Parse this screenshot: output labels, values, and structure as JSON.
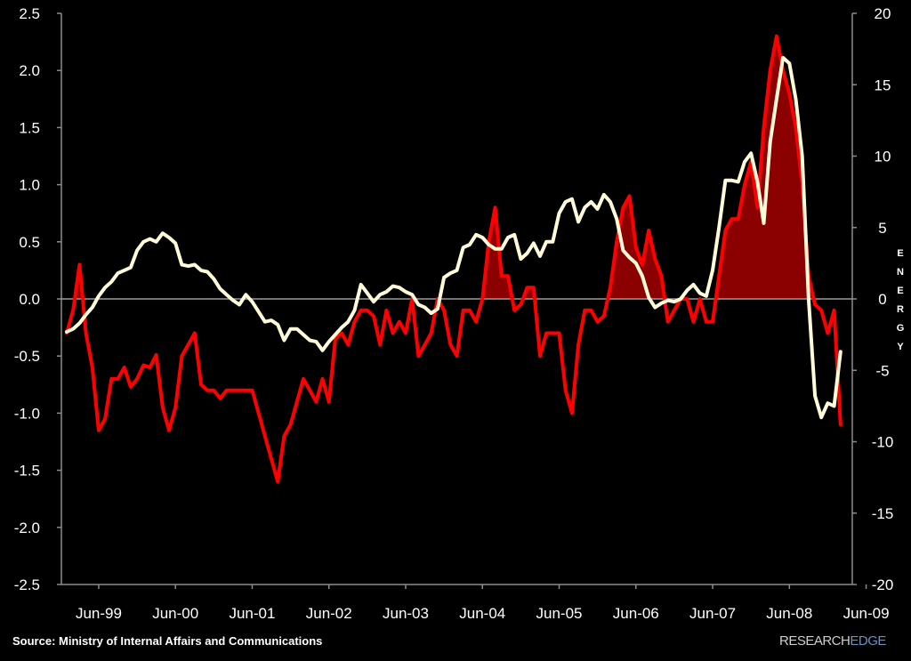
{
  "chart_data": {
    "type": "line",
    "title": "",
    "xlabel": "",
    "ylabel_left": "",
    "ylabel_right": "ENERGY",
    "x_tick_labels": [
      "Jun-99",
      "Jun-00",
      "Jun-01",
      "Jun-02",
      "Jun-03",
      "Jun-04",
      "Jun-05",
      "Jun-06",
      "Jun-07",
      "Jun-08",
      "Jun-09"
    ],
    "x_range": [
      "1999-01",
      "2009-03"
    ],
    "ylim_left": [
      -2.5,
      2.5
    ],
    "ylim_right": [
      -20,
      20
    ],
    "y_ticks_left": [
      "2.5",
      "2.0",
      "1.5",
      "1.0",
      "0.5",
      "0.0",
      "-0.5",
      "-1.0",
      "-1.5",
      "-2.0",
      "-2.5"
    ],
    "y_ticks_right": [
      "20",
      "15",
      "10",
      "5",
      "0",
      "-5",
      "-10",
      "-15",
      "-20"
    ],
    "zero_line": true,
    "series": [
      {
        "axis": "left",
        "color": "#ff0000",
        "fill_positive": "#8b0000",
        "x": [
          "1999-01",
          "1999-02",
          "1999-03",
          "1999-04",
          "1999-05",
          "1999-06",
          "1999-07",
          "1999-08",
          "1999-09",
          "1999-10",
          "1999-11",
          "1999-12",
          "2000-01",
          "2000-02",
          "2000-03",
          "2000-04",
          "2000-05",
          "2000-06",
          "2000-07",
          "2000-08",
          "2000-09",
          "2000-10",
          "2000-11",
          "2000-12",
          "2001-01",
          "2001-02",
          "2001-03",
          "2001-04",
          "2001-05",
          "2001-06",
          "2001-07",
          "2001-08",
          "2001-09",
          "2001-10",
          "2001-11",
          "2001-12",
          "2002-01",
          "2002-02",
          "2002-03",
          "2002-04",
          "2002-05",
          "2002-06",
          "2002-07",
          "2002-08",
          "2002-09",
          "2002-10",
          "2002-11",
          "2002-12",
          "2003-01",
          "2003-02",
          "2003-03",
          "2003-04",
          "2003-05",
          "2003-06",
          "2003-07",
          "2003-08",
          "2003-09",
          "2003-10",
          "2003-11",
          "2003-12",
          "2004-01",
          "2004-02",
          "2004-03",
          "2004-04",
          "2004-05",
          "2004-06",
          "2004-07",
          "2004-08",
          "2004-09",
          "2004-10",
          "2004-11",
          "2004-12",
          "2005-01",
          "2005-02",
          "2005-03",
          "2005-04",
          "2005-05",
          "2005-06",
          "2005-07",
          "2005-08",
          "2005-09",
          "2005-10",
          "2005-11",
          "2005-12",
          "2006-01",
          "2006-02",
          "2006-03",
          "2006-04",
          "2006-05",
          "2006-06",
          "2006-07",
          "2006-08",
          "2006-09",
          "2006-10",
          "2006-11",
          "2006-12",
          "2007-01",
          "2007-02",
          "2007-03",
          "2007-04",
          "2007-05",
          "2007-06",
          "2007-07",
          "2007-08",
          "2007-09",
          "2007-10",
          "2007-11",
          "2007-12",
          "2008-01",
          "2008-02",
          "2008-03",
          "2008-04",
          "2008-05",
          "2008-06",
          "2008-07",
          "2008-08",
          "2008-09",
          "2008-10",
          "2008-11",
          "2008-12",
          "2009-01",
          "2009-02"
        ],
        "values": [
          -0.3,
          -0.1,
          0.3,
          -0.3,
          -0.6,
          -1.15,
          -1.05,
          -0.7,
          -0.7,
          -0.6,
          -0.77,
          -0.7,
          -0.58,
          -0.6,
          -0.49,
          -0.95,
          -1.15,
          -0.95,
          -0.5,
          -0.4,
          -0.3,
          -0.75,
          -0.8,
          -0.8,
          -0.87,
          -0.8,
          -0.8,
          -0.8,
          -0.8,
          -0.8,
          -1.0,
          -1.2,
          -1.4,
          -1.6,
          -1.2,
          -1.1,
          -0.9,
          -0.7,
          -0.8,
          -0.9,
          -0.7,
          -0.9,
          -0.35,
          -0.3,
          -0.4,
          -0.2,
          -0.1,
          -0.1,
          -0.15,
          -0.4,
          -0.1,
          -0.3,
          -0.2,
          -0.3,
          0.0,
          -0.5,
          -0.4,
          -0.3,
          0.0,
          -0.1,
          -0.4,
          -0.5,
          -0.1,
          -0.1,
          -0.2,
          0.0,
          0.5,
          0.8,
          0.2,
          0.2,
          -0.1,
          -0.05,
          0.1,
          0.1,
          -0.5,
          -0.3,
          -0.3,
          -0.3,
          -0.8,
          -1.0,
          -0.4,
          -0.1,
          -0.1,
          -0.2,
          -0.15,
          0.1,
          0.5,
          0.8,
          0.9,
          0.45,
          0.3,
          0.6,
          0.35,
          0.2,
          -0.2,
          -0.1,
          0.0,
          0.0,
          -0.2,
          0.0,
          -0.2,
          -0.2,
          0.2,
          0.6,
          0.7,
          0.7,
          1.0,
          1.2,
          0.8,
          1.5,
          2.0,
          2.3,
          2.0,
          1.8,
          1.5,
          1.0,
          0.2,
          -0.05,
          -0.1,
          -0.3,
          -0.1,
          -1.1
        ]
      },
      {
        "axis": "right",
        "color": "#fffbd8",
        "x": [
          "1999-01",
          "1999-02",
          "1999-03",
          "1999-04",
          "1999-05",
          "1999-06",
          "1999-07",
          "1999-08",
          "1999-09",
          "1999-10",
          "1999-11",
          "1999-12",
          "2000-01",
          "2000-02",
          "2000-03",
          "2000-04",
          "2000-05",
          "2000-06",
          "2000-07",
          "2000-08",
          "2000-09",
          "2000-10",
          "2000-11",
          "2000-12",
          "2001-01",
          "2001-02",
          "2001-03",
          "2001-04",
          "2001-05",
          "2001-06",
          "2001-07",
          "2001-08",
          "2001-09",
          "2001-10",
          "2001-11",
          "2001-12",
          "2002-01",
          "2002-02",
          "2002-03",
          "2002-04",
          "2002-05",
          "2002-06",
          "2002-07",
          "2002-08",
          "2002-09",
          "2002-10",
          "2002-11",
          "2002-12",
          "2003-01",
          "2003-02",
          "2003-03",
          "2003-04",
          "2003-05",
          "2003-06",
          "2003-07",
          "2003-08",
          "2003-09",
          "2003-10",
          "2003-11",
          "2003-12",
          "2004-01",
          "2004-02",
          "2004-03",
          "2004-04",
          "2004-05",
          "2004-06",
          "2004-07",
          "2004-08",
          "2004-09",
          "2004-10",
          "2004-11",
          "2004-12",
          "2005-01",
          "2005-02",
          "2005-03",
          "2005-04",
          "2005-05",
          "2005-06",
          "2005-07",
          "2005-08",
          "2005-09",
          "2005-10",
          "2005-11",
          "2005-12",
          "2006-01",
          "2006-02",
          "2006-03",
          "2006-04",
          "2006-05",
          "2006-06",
          "2006-07",
          "2006-08",
          "2006-09",
          "2006-10",
          "2006-11",
          "2006-12",
          "2007-01",
          "2007-02",
          "2007-03",
          "2007-04",
          "2007-05",
          "2007-06",
          "2007-07",
          "2007-08",
          "2007-09",
          "2007-10",
          "2007-11",
          "2007-12",
          "2008-01",
          "2008-02",
          "2008-03",
          "2008-04",
          "2008-05",
          "2008-06",
          "2008-07",
          "2008-08",
          "2008-09",
          "2008-10",
          "2008-11",
          "2008-12",
          "2009-01",
          "2009-02"
        ],
        "values": [
          -2.3,
          -2.1,
          -1.7,
          -1.1,
          -0.6,
          0.2,
          0.8,
          1.2,
          1.8,
          2.0,
          2.2,
          3.4,
          4.0,
          4.2,
          4.0,
          4.6,
          4.3,
          3.9,
          2.4,
          2.3,
          2.4,
          2.0,
          1.9,
          1.4,
          0.7,
          0.3,
          -0.1,
          -0.4,
          0.3,
          -0.2,
          -0.9,
          -1.6,
          -1.5,
          -1.8,
          -2.9,
          -2.1,
          -2.1,
          -2.5,
          -2.9,
          -3.0,
          -3.6,
          -3.0,
          -2.5,
          -2.0,
          -1.6,
          -0.8,
          1.0,
          0.4,
          -0.2,
          0.3,
          0.5,
          0.9,
          0.8,
          0.5,
          0.3,
          -0.4,
          -0.6,
          -1.0,
          -0.7,
          1.5,
          1.8,
          2.0,
          3.6,
          3.8,
          4.5,
          4.3,
          3.8,
          3.5,
          3.5,
          4.3,
          4.5,
          2.8,
          3.2,
          3.9,
          3.0,
          4.0,
          4.0,
          6.0,
          6.8,
          7.0,
          5.4,
          6.4,
          6.8,
          6.3,
          7.3,
          6.8,
          5.6,
          3.4,
          2.9,
          2.5,
          1.6,
          0.1,
          -0.6,
          -0.3,
          -0.1,
          -0.2,
          0.0,
          0.6,
          1.0,
          0.4,
          0.2,
          2.0,
          5.0,
          8.3,
          8.3,
          8.2,
          9.6,
          10.2,
          8.2,
          5.3,
          11.0,
          14.0,
          16.9,
          16.5,
          14.0,
          10.0,
          0.0,
          -6.8,
          -8.3,
          -7.3,
          -7.5,
          -3.7
        ]
      }
    ]
  },
  "footer": {
    "source": "Source: Ministry of Internal Affairs and Communications",
    "logo_main": "RESEARCH",
    "logo_accent": "EDGE"
  }
}
